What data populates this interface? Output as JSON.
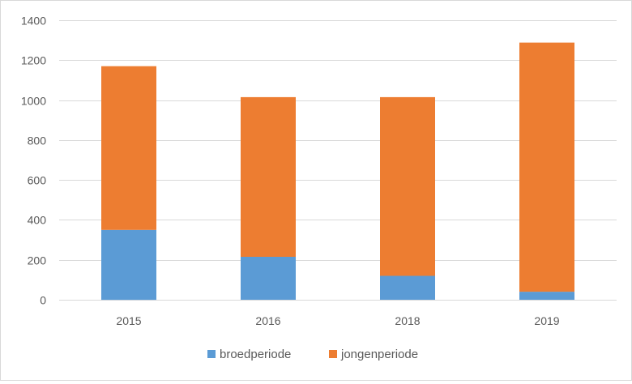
{
  "chart_data": {
    "type": "bar",
    "stacked": true,
    "categories": [
      "2015",
      "2016",
      "2018",
      "2019"
    ],
    "series": [
      {
        "name": "broedperiode",
        "values": [
          350,
          215,
          120,
          40
        ],
        "color": "#5b9bd5"
      },
      {
        "name": "jongenperiode",
        "values": [
          820,
          800,
          895,
          1248
        ],
        "color": "#ed7d31"
      }
    ],
    "title": "",
    "xlabel": "",
    "ylabel": "",
    "ylim": [
      0,
      1400
    ],
    "yticks": [
      0,
      200,
      400,
      600,
      800,
      1000,
      1200,
      1400
    ],
    "grid": true,
    "gridlines_color": "#d9d9d9",
    "legend_position": "bottom"
  }
}
